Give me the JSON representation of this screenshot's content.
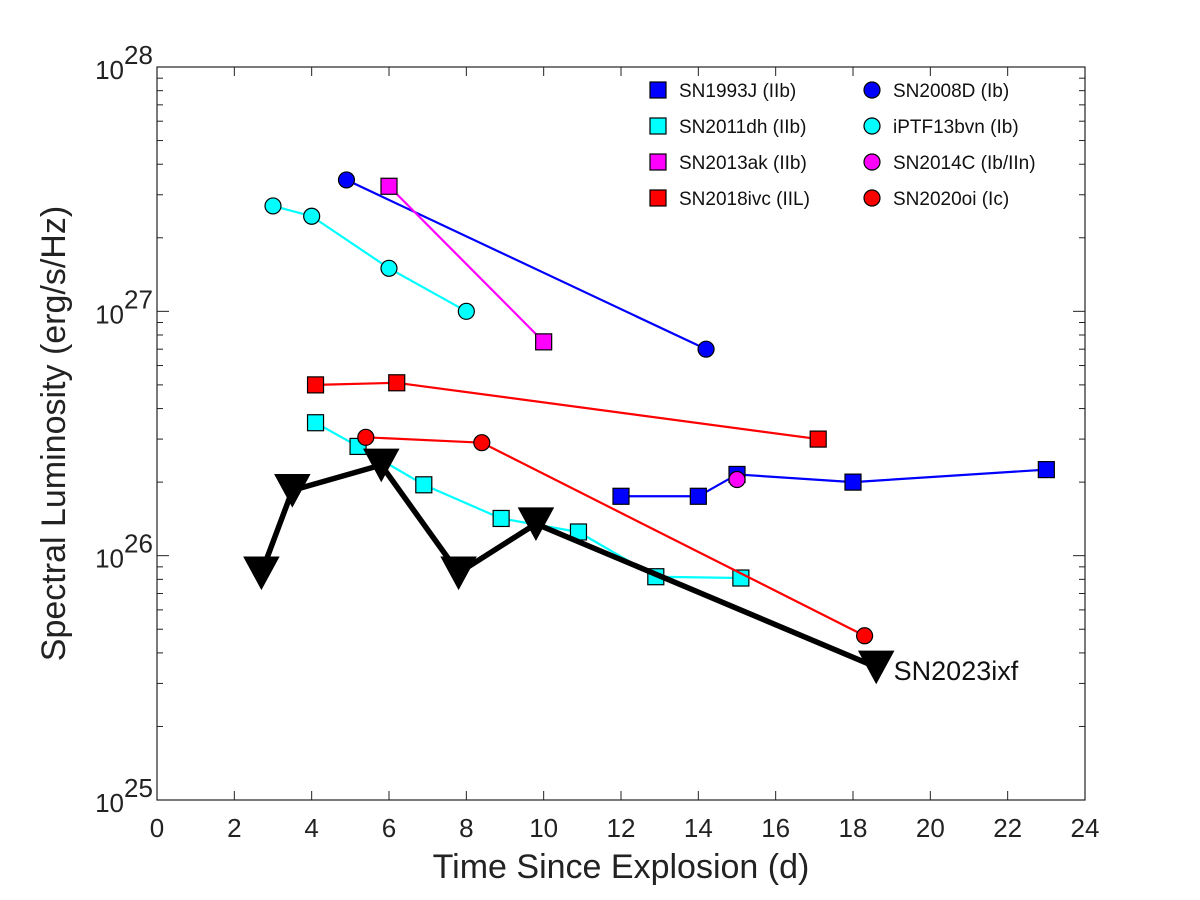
{
  "chart_data": {
    "type": "line",
    "title": "",
    "xlabel": "Time Since Explosion  (d)",
    "ylabel": "Spectral Luminosity  (erg/s/Hz)",
    "xlim": [
      0,
      24
    ],
    "ylim": [
      1e+25,
      1e+28
    ],
    "yscale": "log",
    "x_ticks": [
      "0",
      "2",
      "4",
      "6",
      "8",
      "10",
      "12",
      "14",
      "16",
      "18",
      "20",
      "22",
      "24"
    ],
    "y_ticks": [
      {
        "base": "10",
        "exp": "25"
      },
      {
        "base": "10",
        "exp": "26"
      },
      {
        "base": "10",
        "exp": "27"
      },
      {
        "base": "10",
        "exp": "28"
      }
    ],
    "legend_position": "top-right",
    "series": [
      {
        "name": "SN1993J (IIb)",
        "marker": "square",
        "color": "#0000ff",
        "x": [
          12.0,
          14.0,
          15.0,
          18.0,
          23.0
        ],
        "y": [
          1.75e+26,
          1.75e+26,
          2.15e+26,
          2e+26,
          2.25e+26
        ]
      },
      {
        "name": "SN2008D (Ib)",
        "marker": "circle",
        "color": "#0000ff",
        "x": [
          4.9,
          14.2
        ],
        "y": [
          3.45e+27,
          7e+26
        ]
      },
      {
        "name": "SN2011dh (IIb)",
        "marker": "square",
        "color": "#00ffff",
        "x": [
          4.1,
          5.2,
          6.9,
          8.9,
          10.9,
          12.9,
          15.1
        ],
        "y": [
          3.5e+26,
          2.8e+26,
          1.95e+26,
          1.42e+26,
          1.25e+26,
          8.2e+25,
          8.1e+25
        ]
      },
      {
        "name": "iPTF13bvn (Ib)",
        "marker": "circle",
        "color": "#00ffff",
        "x": [
          3.0,
          4.0,
          6.0,
          8.0
        ],
        "y": [
          2.7e+27,
          2.45e+27,
          1.5e+27,
          1e+27
        ]
      },
      {
        "name": "SN2013ak (IIb)",
        "marker": "square",
        "color": "#ff00ff",
        "x": [
          6.0,
          10.0
        ],
        "y": [
          3.25e+27,
          7.5e+26
        ]
      },
      {
        "name": "SN2014C (Ib/IIn)",
        "marker": "circle",
        "color": "#ff00ff",
        "x": [
          15.0
        ],
        "y": [
          2.05e+26
        ]
      },
      {
        "name": "SN2018ivc (IIL)",
        "marker": "square",
        "color": "#ff0000",
        "x": [
          4.1,
          6.2,
          17.1
        ],
        "y": [
          5e+26,
          5.1e+26,
          3e+26
        ]
      },
      {
        "name": "SN2020oi (Ic)",
        "marker": "circle",
        "color": "#ff0000",
        "x": [
          5.4,
          8.4,
          18.3
        ],
        "y": [
          3.05e+26,
          2.9e+26,
          4.7e+25
        ]
      },
      {
        "name": "SN2023ixf",
        "marker": "triangle-down",
        "color": "#000000",
        "x": [
          2.7,
          3.5,
          5.8,
          7.8,
          9.8,
          18.6
        ],
        "y": [
          8.5e+25,
          1.85e+26,
          2.35e+26,
          8.5e+25,
          1.35e+26,
          3.5e+25
        ]
      }
    ],
    "annotations": [
      {
        "text": "SN2023ixf",
        "x": 19.0,
        "y": 3.4e+25
      }
    ]
  }
}
